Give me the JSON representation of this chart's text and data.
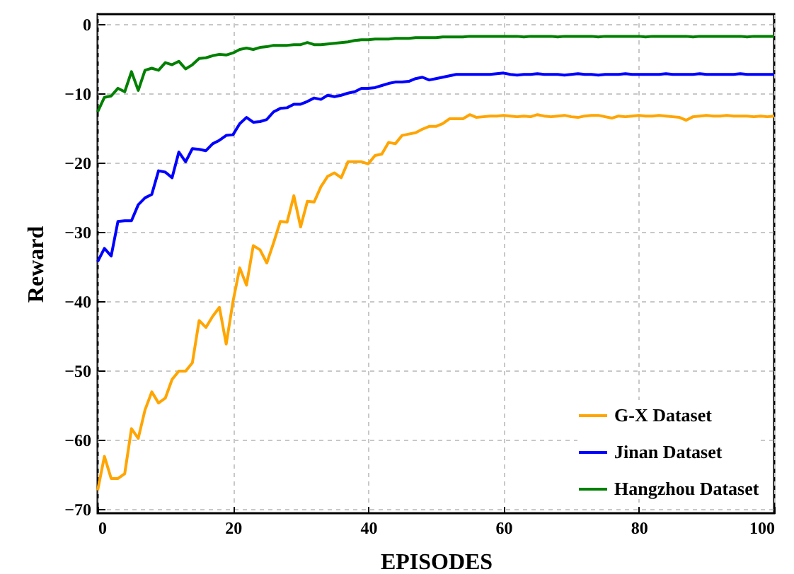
{
  "chart_data": {
    "type": "line",
    "xlabel": "EPISODES",
    "ylabel": "Reward",
    "x": [
      0,
      1,
      2,
      3,
      4,
      5,
      6,
      7,
      8,
      9,
      10,
      11,
      12,
      13,
      14,
      15,
      16,
      17,
      18,
      19,
      20,
      21,
      22,
      23,
      24,
      25,
      26,
      27,
      28,
      29,
      30,
      31,
      32,
      33,
      34,
      35,
      36,
      37,
      38,
      39,
      40,
      41,
      42,
      43,
      44,
      45,
      46,
      47,
      48,
      49,
      50,
      51,
      52,
      53,
      54,
      55,
      56,
      57,
      58,
      59,
      60,
      61,
      62,
      63,
      64,
      65,
      66,
      67,
      68,
      69,
      70,
      71,
      72,
      73,
      74,
      75,
      76,
      77,
      78,
      79,
      80,
      81,
      82,
      83,
      84,
      85,
      86,
      87,
      88,
      89,
      90,
      91,
      92,
      93,
      94,
      95,
      96,
      97,
      98,
      99,
      100
    ],
    "series": [
      {
        "name": "G-X Dataset",
        "color": "#ffa500",
        "values": [
          -67.3,
          -62.4,
          -65.6,
          -65.6,
          -64.9,
          -58.4,
          -59.8,
          -55.7,
          -53.1,
          -54.7,
          -54.0,
          -51.3,
          -50.1,
          -50.1,
          -48.9,
          -42.8,
          -43.8,
          -42.2,
          -40.9,
          -46.2,
          -40.1,
          -35.2,
          -37.7,
          -32.0,
          -32.6,
          -34.5,
          -31.6,
          -28.5,
          -28.6,
          -24.8,
          -29.3,
          -25.6,
          -25.7,
          -23.5,
          -22.0,
          -21.5,
          -22.2,
          -19.9,
          -19.9,
          -19.9,
          -20.2,
          -19.0,
          -18.8,
          -17.1,
          -17.3,
          -16.1,
          -15.9,
          -15.7,
          -15.2,
          -14.8,
          -14.8,
          -14.4,
          -13.7,
          -13.7,
          -13.7,
          -13.1,
          -13.5,
          -13.4,
          -13.3,
          -13.3,
          -13.2,
          -13.3,
          -13.4,
          -13.3,
          -13.4,
          -13.1,
          -13.3,
          -13.4,
          -13.3,
          -13.2,
          -13.4,
          -13.5,
          -13.3,
          -13.2,
          -13.2,
          -13.4,
          -13.6,
          -13.3,
          -13.4,
          -13.3,
          -13.2,
          -13.3,
          -13.3,
          -13.2,
          -13.3,
          -13.4,
          -13.5,
          -13.9,
          -13.4,
          -13.3,
          -13.2,
          -13.3,
          -13.3,
          -13.2,
          -13.3,
          -13.3,
          -13.3,
          -13.4,
          -13.3,
          -13.4,
          -13.3
        ]
      },
      {
        "name": "Jinan Dataset",
        "color": "#0000ff",
        "values": [
          -34.3,
          -32.4,
          -33.5,
          -28.5,
          -28.4,
          -28.4,
          -26.1,
          -25.1,
          -24.6,
          -21.2,
          -21.4,
          -22.2,
          -18.5,
          -19.9,
          -18.0,
          -18.1,
          -18.3,
          -17.3,
          -16.8,
          -16.1,
          -16.0,
          -14.4,
          -13.5,
          -14.2,
          -14.1,
          -13.8,
          -12.7,
          -12.2,
          -12.1,
          -11.6,
          -11.6,
          -11.2,
          -10.7,
          -10.9,
          -10.3,
          -10.5,
          -10.3,
          -10.0,
          -9.8,
          -9.3,
          -9.3,
          -9.2,
          -8.9,
          -8.6,
          -8.4,
          -8.4,
          -8.3,
          -7.9,
          -7.7,
          -8.1,
          -7.9,
          -7.7,
          -7.5,
          -7.3,
          -7.3,
          -7.3,
          -7.3,
          -7.3,
          -7.3,
          -7.2,
          -7.1,
          -7.3,
          -7.4,
          -7.3,
          -7.3,
          -7.2,
          -7.3,
          -7.3,
          -7.3,
          -7.4,
          -7.3,
          -7.2,
          -7.3,
          -7.3,
          -7.4,
          -7.3,
          -7.3,
          -7.3,
          -7.2,
          -7.3,
          -7.3,
          -7.3,
          -7.3,
          -7.3,
          -7.2,
          -7.3,
          -7.3,
          -7.3,
          -7.3,
          -7.2,
          -7.3,
          -7.3,
          -7.3,
          -7.3,
          -7.3,
          -7.2,
          -7.3,
          -7.3,
          -7.3,
          -7.3,
          -7.3
        ]
      },
      {
        "name": "Hangzhou Dataset",
        "color": "#008000",
        "values": [
          -12.7,
          -10.6,
          -10.4,
          -9.3,
          -9.8,
          -6.9,
          -9.6,
          -6.7,
          -6.4,
          -6.7,
          -5.6,
          -5.9,
          -5.4,
          -6.5,
          -5.9,
          -5.0,
          -4.9,
          -4.6,
          -4.4,
          -4.5,
          -4.2,
          -3.7,
          -3.5,
          -3.7,
          -3.4,
          -3.3,
          -3.1,
          -3.1,
          -3.1,
          -3.0,
          -3.0,
          -2.7,
          -3.0,
          -3.0,
          -2.9,
          -2.8,
          -2.7,
          -2.6,
          -2.4,
          -2.3,
          -2.3,
          -2.2,
          -2.2,
          -2.2,
          -2.1,
          -2.1,
          -2.1,
          -2.0,
          -2.0,
          -2.0,
          -2.0,
          -1.9,
          -1.9,
          -1.9,
          -1.9,
          -1.8,
          -1.8,
          -1.8,
          -1.8,
          -1.8,
          -1.8,
          -1.8,
          -1.8,
          -1.9,
          -1.8,
          -1.8,
          -1.8,
          -1.8,
          -1.9,
          -1.8,
          -1.8,
          -1.8,
          -1.8,
          -1.8,
          -1.9,
          -1.8,
          -1.8,
          -1.8,
          -1.8,
          -1.8,
          -1.8,
          -1.9,
          -1.8,
          -1.8,
          -1.8,
          -1.8,
          -1.8,
          -1.8,
          -1.9,
          -1.8,
          -1.8,
          -1.8,
          -1.8,
          -1.8,
          -1.8,
          -1.8,
          -1.9,
          -1.8,
          -1.8,
          -1.8,
          -1.8
        ]
      }
    ],
    "xlim": [
      0,
      100
    ],
    "xticks": [
      0,
      20,
      40,
      60,
      80,
      100
    ],
    "ylim": [
      -70.6,
      1.4
    ],
    "yticks": [
      -70,
      -60,
      -50,
      -40,
      -30,
      -20,
      -10,
      0
    ],
    "grid": true,
    "legend": "bottom right",
    "marker": "none",
    "line_style": "solid"
  }
}
